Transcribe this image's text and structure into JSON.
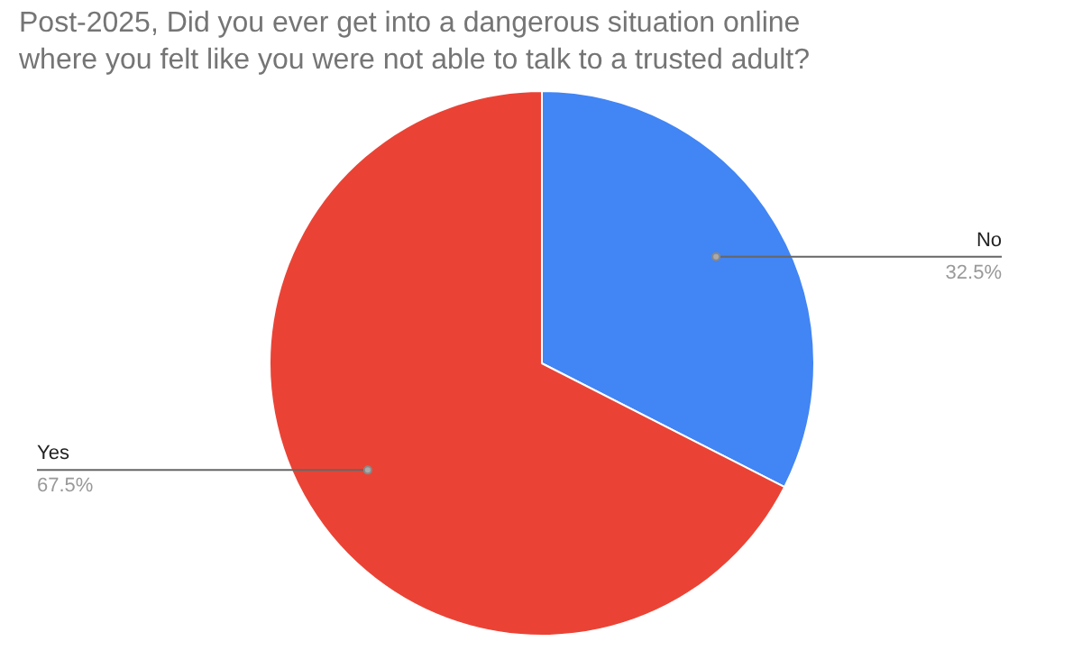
{
  "chart_data": {
    "type": "pie",
    "title": "Post-2025, Did you ever get into a dangerous situation online\nwhere you felt like you were not able to talk to a trusted adult?",
    "categories": [
      "No",
      "Yes"
    ],
    "values": [
      32.5,
      67.5
    ],
    "value_labels": [
      "32.5%",
      "67.5%"
    ],
    "colors": [
      "#4285f4",
      "#ea4335"
    ]
  }
}
